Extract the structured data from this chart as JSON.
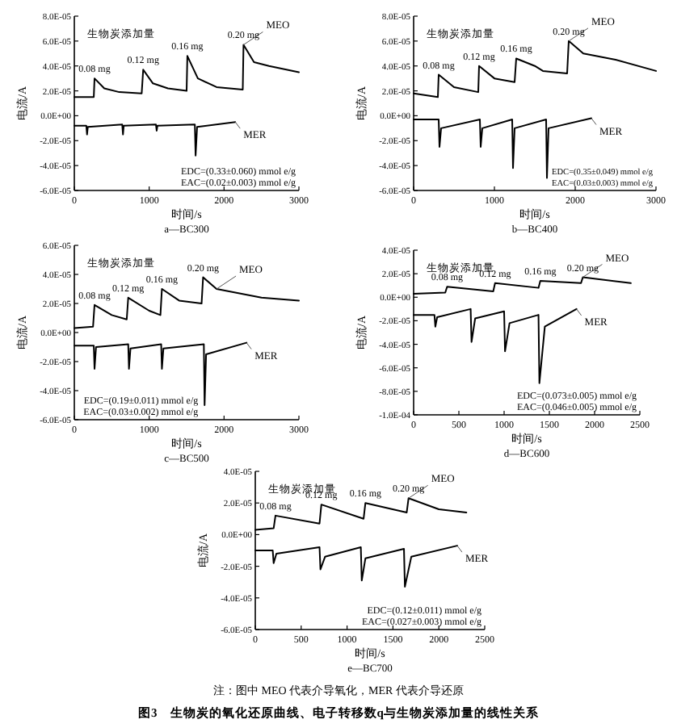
{
  "chart_data": [
    {
      "type": "line",
      "subtitle": "a—BC300",
      "xlabel": "时间/s",
      "ylabel": "电流/A",
      "xlim": [
        0,
        3000
      ],
      "xticks": [
        0,
        1000,
        2000,
        3000
      ],
      "ylim": [
        -6e-05,
        8e-05
      ],
      "yticks": [
        {
          "value": 8e-05,
          "label": "8.0E-05"
        },
        {
          "value": 6e-05,
          "label": "6.0E-05"
        },
        {
          "value": 4e-05,
          "label": "4.0E-05"
        },
        {
          "value": 2e-05,
          "label": "2.0E-05"
        },
        {
          "value": 0,
          "label": "0.0E+00"
        },
        {
          "value": -2e-05,
          "label": "-2.0E-05"
        },
        {
          "value": -4e-05,
          "label": "-4.0E-05"
        },
        {
          "value": -6e-05,
          "label": "-6.0E-05"
        }
      ],
      "series": [
        {
          "name": "MEO",
          "color": "#000000",
          "x": [
            0,
            260,
            270,
            400,
            600,
            900,
            920,
            1050,
            1250,
            1500,
            1510,
            1650,
            1900,
            2250,
            2260,
            2400,
            2600,
            3000
          ],
          "values": [
            1.5e-05,
            1.5e-05,
            3e-05,
            2.2e-05,
            1.9e-05,
            1.8e-05,
            3.7e-05,
            2.6e-05,
            2.2e-05,
            2e-05,
            4.8e-05,
            3e-05,
            2.3e-05,
            2.1e-05,
            5.7e-05,
            4.3e-05,
            4e-05,
            3.5e-05
          ]
        },
        {
          "name": "MER",
          "color": "#000000",
          "x": [
            0,
            160,
            170,
            180,
            640,
            650,
            660,
            1090,
            1100,
            1110,
            1610,
            1620,
            1640,
            2150
          ],
          "values": [
            -8e-06,
            -8e-06,
            -1.5e-05,
            -9e-06,
            -7e-06,
            -1.5e-05,
            -8e-06,
            -7e-06,
            -1.2e-05,
            -8e-06,
            -7e-06,
            -3.2e-05,
            -9e-06,
            -5e-06
          ]
        }
      ],
      "annotations": [
        "生物炭添加量",
        "EDC=(0.33±0.060) mmol e/g",
        "EAC=(0.02±0.003) mmol e/g",
        {
          "text": "0.08 mg",
          "x": 270,
          "y": 3e-05
        },
        {
          "text": "0.12 mg",
          "x": 920,
          "y": 3.7e-05
        },
        {
          "text": "0.16 mg",
          "x": 1510,
          "y": 4.8e-05
        },
        {
          "text": "0.20 mg",
          "x": 2260,
          "y": 5.7e-05
        }
      ]
    },
    {
      "type": "line",
      "subtitle": "b—BC400",
      "xlabel": "时间/s",
      "ylabel": "电流/A",
      "xlim": [
        0,
        3000
      ],
      "xticks": [
        0,
        1000,
        2000,
        3000
      ],
      "ylim": [
        -6e-05,
        8e-05
      ],
      "yticks": [
        {
          "value": 8e-05,
          "label": "8.0E-05"
        },
        {
          "value": 6e-05,
          "label": "6.0E-05"
        },
        {
          "value": 4e-05,
          "label": "4.0E-05"
        },
        {
          "value": 2e-05,
          "label": "2.0E-05"
        },
        {
          "value": 0,
          "label": "0.0E+00"
        },
        {
          "value": -2e-05,
          "label": "-2.0E-05"
        },
        {
          "value": -4e-05,
          "label": "-4.0E-05"
        },
        {
          "value": -6e-05,
          "label": "-6.0E-05"
        }
      ],
      "series": [
        {
          "name": "MEO",
          "color": "#000000",
          "x": [
            0,
            300,
            310,
            500,
            800,
            810,
            1000,
            1250,
            1270,
            1500,
            1600,
            1900,
            1920,
            2100,
            2500,
            3000
          ],
          "values": [
            1.8e-05,
            1.5e-05,
            3.3e-05,
            2.3e-05,
            1.9e-05,
            4e-05,
            3e-05,
            2.7e-05,
            4.6e-05,
            4e-05,
            3.6e-05,
            3.4e-05,
            6e-05,
            5e-05,
            4.5e-05,
            3.6e-05
          ]
        },
        {
          "name": "MER",
          "color": "#000000",
          "x": [
            0,
            310,
            320,
            340,
            820,
            830,
            850,
            1220,
            1230,
            1250,
            1640,
            1650,
            1670,
            2200
          ],
          "values": [
            -3e-06,
            -3e-06,
            -2.5e-05,
            -1e-05,
            -3e-06,
            -2.5e-05,
            -1e-05,
            -3e-06,
            -4.2e-05,
            -1e-05,
            -3e-06,
            -5e-05,
            -1e-05,
            -2e-06
          ]
        }
      ],
      "annotations": [
        "生物炭添加量",
        "EDC=(0.35±0.049) mmol e/g",
        "EAC=(0.03±0.003) mmol e/g",
        {
          "text": "0.08 mg",
          "x": 310,
          "y": 3.3e-05
        },
        {
          "text": "0.12 mg",
          "x": 810,
          "y": 4e-05
        },
        {
          "text": "0.16 mg",
          "x": 1270,
          "y": 4.6e-05
        },
        {
          "text": "0.20 mg",
          "x": 1920,
          "y": 6e-05
        }
      ]
    },
    {
      "type": "line",
      "subtitle": "c—BC500",
      "xlabel": "时间/s",
      "ylabel": "电流/A",
      "xlim": [
        0,
        3000
      ],
      "xticks": [
        0,
        1000,
        2000,
        3000
      ],
      "ylim": [
        -6e-05,
        6e-05
      ],
      "yticks": [
        {
          "value": 6e-05,
          "label": "6.0E-05"
        },
        {
          "value": 4e-05,
          "label": "4.0E-05"
        },
        {
          "value": 2e-05,
          "label": "2.0E-05"
        },
        {
          "value": 0,
          "label": "0.0E+00"
        },
        {
          "value": -2e-05,
          "label": "-2.0E-05"
        },
        {
          "value": -4e-05,
          "label": "-4.0E-05"
        },
        {
          "value": -6e-05,
          "label": "-6.0E-05"
        }
      ],
      "series": [
        {
          "name": "MEO",
          "color": "#000000",
          "x": [
            0,
            250,
            270,
            500,
            700,
            720,
            1000,
            1150,
            1170,
            1400,
            1700,
            1720,
            1900,
            2500,
            3000
          ],
          "values": [
            3e-06,
            4e-06,
            1.9e-05,
            1.2e-05,
            9e-06,
            2.4e-05,
            1.5e-05,
            1.2e-05,
            3e-05,
            2.2e-05,
            2e-05,
            3.8e-05,
            3e-05,
            2.4e-05,
            2.2e-05
          ]
        },
        {
          "name": "MER",
          "color": "#000000",
          "x": [
            0,
            260,
            270,
            290,
            720,
            730,
            750,
            1160,
            1170,
            1190,
            1730,
            1740,
            1760,
            2300
          ],
          "values": [
            -9e-06,
            -9e-06,
            -2.5e-05,
            -1e-05,
            -8e-06,
            -2.5e-05,
            -1.1e-05,
            -8e-06,
            -2.5e-05,
            -1.1e-05,
            -8e-06,
            -5e-05,
            -1.5e-05,
            -7e-06
          ]
        }
      ],
      "annotations": [
        "生物炭添加量",
        "EDC=(0.19±0.011) mmol e/g",
        "EAC=(0.03±0.002) mmol e/g",
        {
          "text": "0.08 mg",
          "x": 270,
          "y": 1.9e-05
        },
        {
          "text": "0.12 mg",
          "x": 720,
          "y": 2.4e-05
        },
        {
          "text": "0.16 mg",
          "x": 1170,
          "y": 3e-05
        },
        {
          "text": "0.20 mg",
          "x": 1720,
          "y": 3.8e-05
        }
      ]
    },
    {
      "type": "line",
      "subtitle": "d—BC600",
      "xlabel": "时间/s",
      "ylabel": "电流/A",
      "xlim": [
        0,
        2500
      ],
      "xticks": [
        0,
        500,
        1000,
        1500,
        2000,
        2500
      ],
      "ylim": [
        -0.0001,
        4e-05
      ],
      "yticks": [
        {
          "value": 4e-05,
          "label": "4.0E-05"
        },
        {
          "value": 2e-05,
          "label": "2.0E-05"
        },
        {
          "value": 0,
          "label": "0.0E+00"
        },
        {
          "value": -2e-05,
          "label": "-2.0E-05"
        },
        {
          "value": -4e-05,
          "label": "-4.0E-05"
        },
        {
          "value": -6e-05,
          "label": "-6.0E-05"
        },
        {
          "value": -8e-05,
          "label": "-8.0E-05"
        },
        {
          "value": -0.0001,
          "label": "-1.0E-04"
        }
      ],
      "series": [
        {
          "name": "MEO",
          "color": "#000000",
          "x": [
            0,
            350,
            370,
            880,
            900,
            1380,
            1400,
            1850,
            1870,
            2400
          ],
          "values": [
            3e-06,
            4e-06,
            9e-06,
            5e-06,
            1.2e-05,
            8e-06,
            1.4e-05,
            1.2e-05,
            1.7e-05,
            1.2e-05
          ]
        },
        {
          "name": "MER",
          "color": "#000000",
          "x": [
            0,
            230,
            240,
            260,
            630,
            640,
            680,
            1000,
            1010,
            1060,
            1380,
            1390,
            1450,
            1800
          ],
          "values": [
            -1.5e-05,
            -1.5e-05,
            -2.5e-05,
            -1.7e-05,
            -1e-05,
            -3.8e-05,
            -1.8e-05,
            -1.2e-05,
            -4.6e-05,
            -2.2e-05,
            -1.5e-05,
            -7.3e-05,
            -2.5e-05,
            -1e-05
          ]
        }
      ],
      "annotations": [
        "生物炭添加量",
        "EDC=(0.073±0.005) mmol e/g",
        "EAC=(0.046±0.005) mmol e/g",
        {
          "text": "0.08 mg",
          "x": 370,
          "y": 9e-06
        },
        {
          "text": "0.12 mg",
          "x": 900,
          "y": 1.2e-05
        },
        {
          "text": "0.16 mg",
          "x": 1400,
          "y": 1.4e-05
        },
        {
          "text": "0.20 mg",
          "x": 1870,
          "y": 1.7e-05
        }
      ]
    },
    {
      "type": "line",
      "subtitle": "e—BC700",
      "xlabel": "时间/s",
      "ylabel": "电流/A",
      "xlim": [
        0,
        2500
      ],
      "xticks": [
        0,
        500,
        1000,
        1500,
        2000,
        2500
      ],
      "ylim": [
        -6e-05,
        4e-05
      ],
      "yticks": [
        {
          "value": 4e-05,
          "label": "4.0E-05"
        },
        {
          "value": 2e-05,
          "label": "2.0E-05"
        },
        {
          "value": 0,
          "label": "0.0E+00"
        },
        {
          "value": -2e-05,
          "label": "-2.0E-05"
        },
        {
          "value": -4e-05,
          "label": "-4.0E-05"
        },
        {
          "value": -6e-05,
          "label": "-6.0E-05"
        }
      ],
      "series": [
        {
          "name": "MEO",
          "color": "#000000",
          "x": [
            0,
            200,
            220,
            700,
            720,
            1180,
            1200,
            1650,
            1670,
            2000,
            2300
          ],
          "values": [
            3e-06,
            4e-06,
            1.2e-05,
            7e-06,
            1.9e-05,
            1e-05,
            2e-05,
            1.4e-05,
            2.3e-05,
            1.6e-05,
            1.4e-05
          ]
        },
        {
          "name": "MER",
          "color": "#000000",
          "x": [
            0,
            190,
            200,
            230,
            700,
            710,
            760,
            1150,
            1160,
            1200,
            1620,
            1630,
            1700,
            2200
          ],
          "values": [
            -1e-05,
            -1e-05,
            -1.8e-05,
            -1.2e-05,
            -8e-06,
            -2.2e-05,
            -1.4e-05,
            -8e-06,
            -2.9e-05,
            -1.5e-05,
            -9e-06,
            -3.3e-05,
            -1.4e-05,
            -7e-06
          ]
        }
      ],
      "annotations": [
        "生物炭添加量",
        "EDC=(0.12±0.011) mmol e/g",
        "EAC=(0.027±0.003) mmol e/g",
        {
          "text": "0.08 mg",
          "x": 220,
          "y": 1.2e-05
        },
        {
          "text": "0.12 mg",
          "x": 720,
          "y": 1.9e-05
        },
        {
          "text": "0.16 mg",
          "x": 1200,
          "y": 2e-05
        },
        {
          "text": "0.20 mg",
          "x": 1670,
          "y": 2.3e-05
        },
        "注：图中 MEO 代表介导氧化，MER 代表介导还原",
        "图3　生物炭的氧化还原曲线、电子转移数q与生物炭添加量的线性关系"
      ]
    }
  ]
}
